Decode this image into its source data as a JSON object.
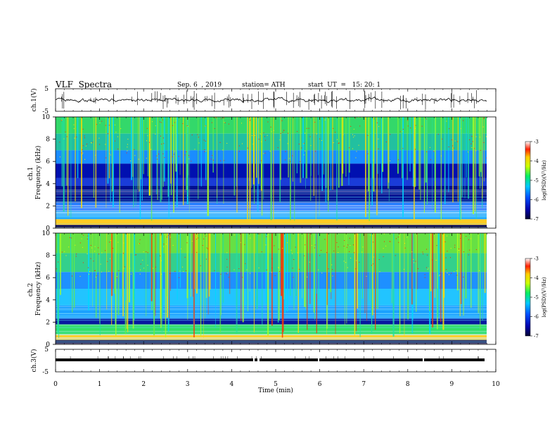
{
  "header": {
    "title": "VLF  Spectra",
    "date": "Sep. 6  , 2019",
    "station": "station= ATH",
    "start": "start  UT  =   15: 20: 1"
  },
  "chart_data": [
    {
      "type": "line",
      "name": "ch1-waveform",
      "ylabel": "ch.1(V)",
      "ylim": [
        -5,
        5
      ],
      "y_ticks": [
        "5",
        "-5"
      ],
      "xlim": [
        0,
        10
      ]
    },
    {
      "type": "heatmap",
      "name": "ch1-spectrogram",
      "ylabel": "ch.1\nFrequency  (kHz)",
      "ylim": [
        0,
        10
      ],
      "y_ticks": [
        "0",
        "2",
        "4",
        "6",
        "8",
        "10"
      ],
      "xlim": [
        0,
        10
      ],
      "colorbar": {
        "label": "log(PSD)(V²/Hz)",
        "ticks": [
          "-3",
          "-4",
          "-5",
          "-6",
          "-7"
        ],
        "range": [
          -7,
          -3
        ]
      }
    },
    {
      "type": "heatmap",
      "name": "ch2-spectrogram",
      "ylabel": "ch.2\nFrequency  (kHz)",
      "ylim": [
        0,
        10
      ],
      "y_ticks": [
        "0",
        "2",
        "4",
        "6",
        "8",
        "10"
      ],
      "xlim": [
        0,
        10
      ],
      "colorbar": {
        "label": "log(PSD)(V²/Hz)",
        "ticks": [
          "-3",
          "-4",
          "-5",
          "-6",
          "-7"
        ],
        "range": [
          -7,
          -3
        ]
      }
    },
    {
      "type": "line",
      "name": "ch3-waveform",
      "ylabel": "ch.3(V)",
      "ylim": [
        -5,
        5
      ],
      "y_ticks": [
        "5",
        "-5"
      ],
      "xlim": [
        0,
        10
      ],
      "xlabel": "Time  (min)",
      "x_ticks": [
        "0",
        "1",
        "2",
        "3",
        "4",
        "5",
        "6",
        "7",
        "8",
        "9",
        "10"
      ]
    }
  ]
}
